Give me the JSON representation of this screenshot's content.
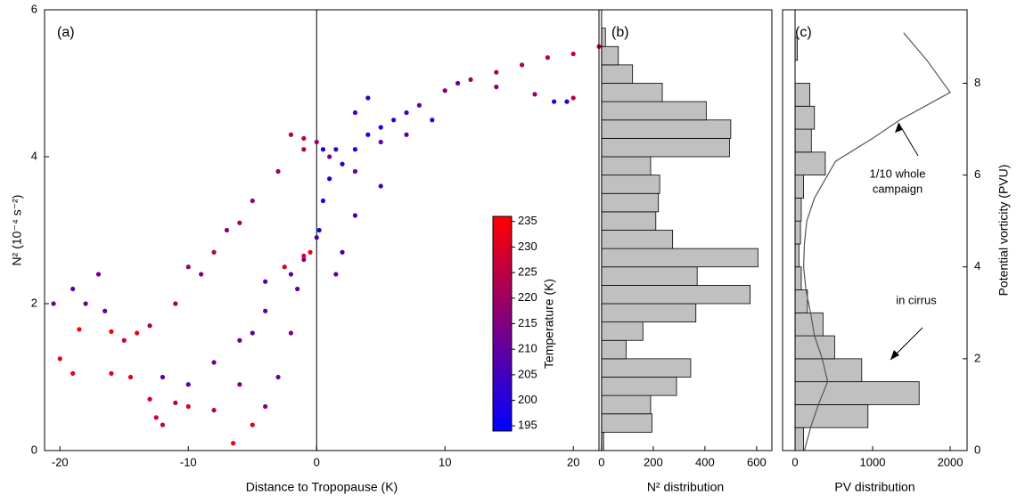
{
  "chart_data": [
    {
      "type": "scatter",
      "panel_label": "(a)",
      "x_label": "Distance to Tropopause (K)",
      "y_label": "N² (10⁻⁴ s⁻²)",
      "xlim": [
        -21.2,
        22.0
      ],
      "ylim": [
        0,
        6
      ],
      "xticks": [
        -20,
        -10,
        0,
        10,
        20
      ],
      "yticks": [
        0,
        2,
        4,
        6
      ],
      "zero_line": true,
      "x": [
        -20.5,
        -19,
        -18,
        -17,
        -16.5,
        -20,
        -19,
        -18.5,
        -16,
        -14,
        -16,
        -14.5,
        -13,
        -12.5,
        -12,
        -11,
        -15,
        -13,
        -11,
        -9,
        -7,
        -5,
        -3,
        -1,
        0,
        -12,
        -10,
        -8,
        -6,
        -4,
        -2,
        0,
        -10,
        -8,
        -6,
        -5,
        -6.5,
        -5,
        -4,
        -3,
        -2,
        -1.5,
        -1,
        -4,
        -2.5,
        -1,
        -0.5,
        -10,
        -8,
        -6,
        -2,
        -1,
        0.2,
        0.5,
        1,
        2,
        3,
        4,
        5,
        6,
        7,
        8,
        10,
        12,
        14,
        16,
        18,
        20,
        22,
        1,
        3,
        5,
        3,
        2,
        1.5,
        11,
        14,
        17,
        20,
        3,
        4,
        5,
        7,
        9,
        18.5,
        19.5,
        0.5,
        1.5
      ],
      "values": [
        2.0,
        2.2,
        2.0,
        2.4,
        1.9,
        1.25,
        1.05,
        1.65,
        1.62,
        1.6,
        1.05,
        1.0,
        0.7,
        0.45,
        0.35,
        0.65,
        1.5,
        1.7,
        2.0,
        2.4,
        3.0,
        3.4,
        3.8,
        4.1,
        4.2,
        1.0,
        0.9,
        1.2,
        1.5,
        1.9,
        2.4,
        2.9,
        0.6,
        0.55,
        0.9,
        1.6,
        0.1,
        0.35,
        0.6,
        1.0,
        1.6,
        2.2,
        2.6,
        2.3,
        2.5,
        2.65,
        2.7,
        2.5,
        2.7,
        3.1,
        4.3,
        4.25,
        3.0,
        3.4,
        3.7,
        3.9,
        4.1,
        4.3,
        4.4,
        4.5,
        4.6,
        4.7,
        4.9,
        5.05,
        5.15,
        5.25,
        5.35,
        5.4,
        5.5,
        4.0,
        3.8,
        3.6,
        3.2,
        2.7,
        2.4,
        5.0,
        4.95,
        4.85,
        4.8,
        4.6,
        4.8,
        4.2,
        4.3,
        4.5,
        4.75,
        4.75,
        4.1,
        4.1
      ],
      "temperature": [
        212,
        210,
        212,
        212,
        210,
        230,
        232,
        235,
        234,
        232,
        232,
        230,
        230,
        228,
        225,
        222,
        228,
        222,
        218,
        215,
        215,
        218,
        220,
        222,
        220,
        210,
        208,
        212,
        210,
        208,
        210,
        205,
        230,
        225,
        215,
        210,
        232,
        230,
        215,
        212,
        215,
        210,
        212,
        208,
        230,
        230,
        232,
        218,
        225,
        222,
        222,
        225,
        198,
        198,
        200,
        202,
        200,
        198,
        198,
        200,
        205,
        210,
        215,
        220,
        222,
        222,
        225,
        228,
        226,
        215,
        210,
        205,
        205,
        205,
        210,
        210,
        215,
        220,
        225,
        205,
        202,
        210,
        208,
        200,
        200,
        200,
        198,
        205
      ],
      "colorbar": {
        "label": "Temperature (K)",
        "clim": [
          194,
          236
        ],
        "ticks": [
          195,
          200,
          205,
          210,
          215,
          220,
          225,
          230,
          235
        ],
        "colors": [
          "#0000ff",
          "#ff0000"
        ]
      }
    },
    {
      "type": "histogram",
      "panel_label": "(b)",
      "x_label": "N² distribution",
      "color": "#c0c0c0",
      "xlim": [
        -10,
        659
      ],
      "ylim": [
        0,
        6
      ],
      "xticks": [
        0,
        200,
        400,
        600
      ],
      "bins": [
        0,
        0.25,
        0.5,
        0.75,
        1.0,
        1.25,
        1.5,
        1.75,
        2.0,
        2.25,
        2.5,
        2.75,
        3.0,
        3.25,
        3.5,
        3.75,
        4.0,
        4.25,
        4.5,
        4.75,
        5.0,
        5.25,
        5.5,
        5.75
      ],
      "counts": [
        8,
        195,
        190,
        290,
        345,
        95,
        160,
        365,
        575,
        370,
        605,
        275,
        210,
        220,
        225,
        190,
        495,
        500,
        405,
        235,
        120,
        65,
        15
      ]
    },
    {
      "type": "histogram",
      "panel_label": "(c)",
      "x_label": "PV distribution",
      "y_label": "Potential vorticity (PVU)",
      "color": "#c0c0c0",
      "xlim": [
        -161,
        2218
      ],
      "ylim": [
        0,
        9.6
      ],
      "xticks": [
        0,
        1000,
        2000
      ],
      "yticks": [
        0,
        2,
        4,
        6,
        8
      ],
      "bins": [
        0,
        0.5,
        1.0,
        1.5,
        2.0,
        2.5,
        3.0,
        3.5,
        4.0,
        4.5,
        5.0,
        5.5,
        6.0,
        6.5,
        7.0,
        7.5,
        8.0,
        8.5,
        9.0
      ],
      "counts": [
        110,
        940,
        1600,
        860,
        510,
        360,
        160,
        80,
        50,
        70,
        80,
        110,
        390,
        210,
        250,
        190,
        0,
        30
      ],
      "line": {
        "color": "#555555",
        "values": [
          120,
          200,
          300,
          420,
          350,
          250,
          200,
          140,
          110,
          120,
          150,
          250,
          420,
          520,
          1000,
          1350,
          2000,
          1700,
          1400
        ],
        "positions": [
          0,
          0.5,
          1,
          1.5,
          2,
          2.5,
          3,
          3.5,
          4,
          4.5,
          5,
          5.5,
          6,
          6.3,
          6.8,
          7.2,
          7.8,
          8.5,
          9.1
        ]
      },
      "annotations": [
        {
          "lines": [
            "1/10 whole",
            "campaign"
          ]
        },
        {
          "lines": [
            "in cirrus"
          ]
        }
      ]
    }
  ]
}
